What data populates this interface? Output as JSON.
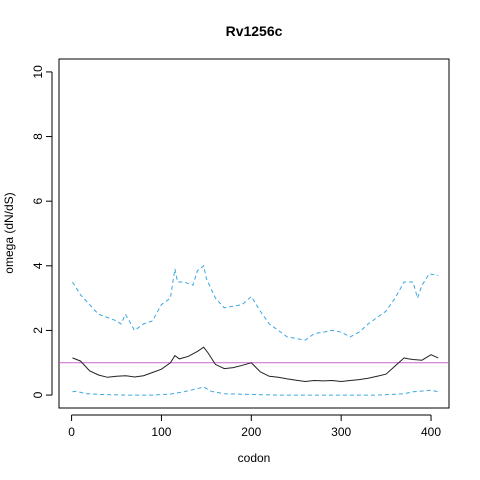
{
  "chart_data": {
    "type": "line",
    "title": "Rv1256c",
    "xlabel": "codon",
    "ylabel": "omega (dN/dS)",
    "xlim": [
      -14,
      420
    ],
    "ylim": [
      -0.4,
      10.4
    ],
    "xticks": [
      0,
      100,
      200,
      300,
      400
    ],
    "yticks": [
      0,
      2,
      4,
      6,
      8,
      10
    ],
    "reference_line": {
      "y": 1,
      "color": "#cc66cc"
    },
    "colors": {
      "mean": "#222222",
      "bounds": "#3aa7e0"
    },
    "series": [
      {
        "style": "solid",
        "x": [
          1,
          10,
          20,
          30,
          40,
          50,
          60,
          70,
          80,
          90,
          100,
          110,
          115,
          120,
          130,
          140,
          147,
          152,
          160,
          170,
          180,
          190,
          200,
          210,
          220,
          230,
          240,
          250,
          260,
          270,
          280,
          290,
          300,
          310,
          320,
          330,
          340,
          350,
          360,
          370,
          375,
          380,
          390,
          400,
          408
        ],
        "y": [
          1.15,
          1.05,
          0.75,
          0.62,
          0.55,
          0.58,
          0.6,
          0.56,
          0.6,
          0.7,
          0.8,
          1.0,
          1.22,
          1.12,
          1.2,
          1.35,
          1.48,
          1.3,
          0.95,
          0.82,
          0.85,
          0.92,
          1.0,
          0.72,
          0.58,
          0.55,
          0.5,
          0.46,
          0.42,
          0.45,
          0.44,
          0.45,
          0.42,
          0.45,
          0.48,
          0.52,
          0.58,
          0.65,
          0.9,
          1.15,
          1.12,
          1.1,
          1.08,
          1.25,
          1.15
        ]
      },
      {
        "style": "dashed",
        "x": [
          1,
          10,
          20,
          30,
          40,
          50,
          55,
          60,
          70,
          80,
          90,
          100,
          110,
          115,
          118,
          125,
          135,
          140,
          147,
          150,
          160,
          170,
          180,
          190,
          200,
          210,
          220,
          230,
          240,
          250,
          260,
          270,
          280,
          290,
          300,
          310,
          320,
          330,
          340,
          350,
          360,
          370,
          380,
          385,
          390,
          398,
          408
        ],
        "y": [
          3.5,
          3.1,
          2.8,
          2.5,
          2.4,
          2.3,
          2.2,
          2.5,
          2.0,
          2.2,
          2.3,
          2.8,
          3.0,
          3.9,
          3.5,
          3.5,
          3.4,
          3.85,
          4.0,
          3.6,
          3.0,
          2.7,
          2.75,
          2.8,
          3.05,
          2.6,
          2.2,
          2.0,
          1.8,
          1.75,
          1.7,
          1.9,
          1.95,
          2.0,
          1.95,
          1.8,
          1.95,
          2.2,
          2.4,
          2.6,
          3.0,
          3.5,
          3.5,
          3.0,
          3.4,
          3.75,
          3.7
        ]
      },
      {
        "style": "dashed",
        "x": [
          1,
          5,
          15,
          30,
          60,
          90,
          110,
          125,
          140,
          147,
          155,
          170,
          200,
          230,
          260,
          300,
          340,
          370,
          380,
          400,
          408
        ],
        "y": [
          0.1,
          0.12,
          0.05,
          0.02,
          0.0,
          0.0,
          0.03,
          0.1,
          0.2,
          0.25,
          0.12,
          0.04,
          0.02,
          0.0,
          0.0,
          0.0,
          0.0,
          0.04,
          0.1,
          0.15,
          0.1
        ]
      }
    ]
  }
}
